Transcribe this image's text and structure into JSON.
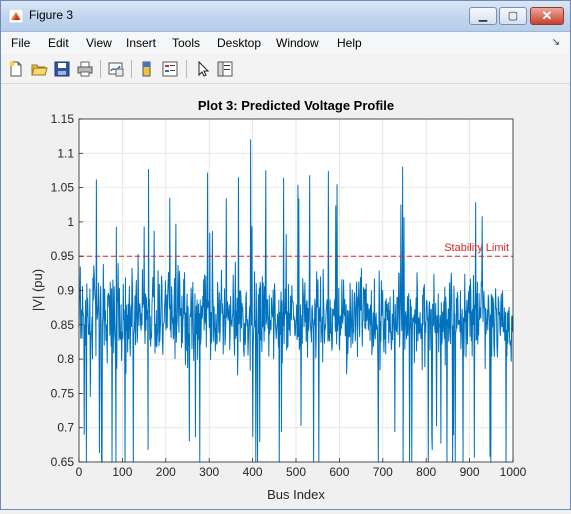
{
  "window": {
    "title": "Figure 3"
  },
  "menu": [
    "File",
    "Edit",
    "View",
    "Insert",
    "Tools",
    "Desktop",
    "Window",
    "Help"
  ],
  "toolbar": {
    "icons": [
      "new-figure-icon",
      "open-file-icon",
      "save-icon",
      "print-icon",
      "link-plot-icon",
      "colorbar-icon",
      "legend-icon",
      "pointer-icon",
      "property-editor-icon"
    ]
  },
  "chart_data": {
    "type": "line",
    "title": "Plot 3: Predicted Voltage Profile",
    "xlabel": "Bus Index",
    "ylabel": "|V| (pu)",
    "xlim": [
      0,
      1000
    ],
    "ylim": [
      0.65,
      1.15
    ],
    "xticks": [
      "0",
      "100",
      "200",
      "300",
      "400",
      "500",
      "600",
      "700",
      "800",
      "900",
      "1000"
    ],
    "yticks": [
      "0.65",
      "0.7",
      "0.75",
      "0.8",
      "0.85",
      "0.9",
      "0.95",
      "1",
      "1.05",
      "1.1",
      "1.15"
    ],
    "grid": true,
    "series": [
      {
        "color": "#0072bd",
        "points": 1000,
        "mean": 0.86,
        "min_approx": 0.65,
        "max_approx": 1.12
      }
    ],
    "reference_line": {
      "y": 0.95,
      "label": "Stability Limit",
      "color": "#d62728",
      "style": "dashed"
    }
  }
}
